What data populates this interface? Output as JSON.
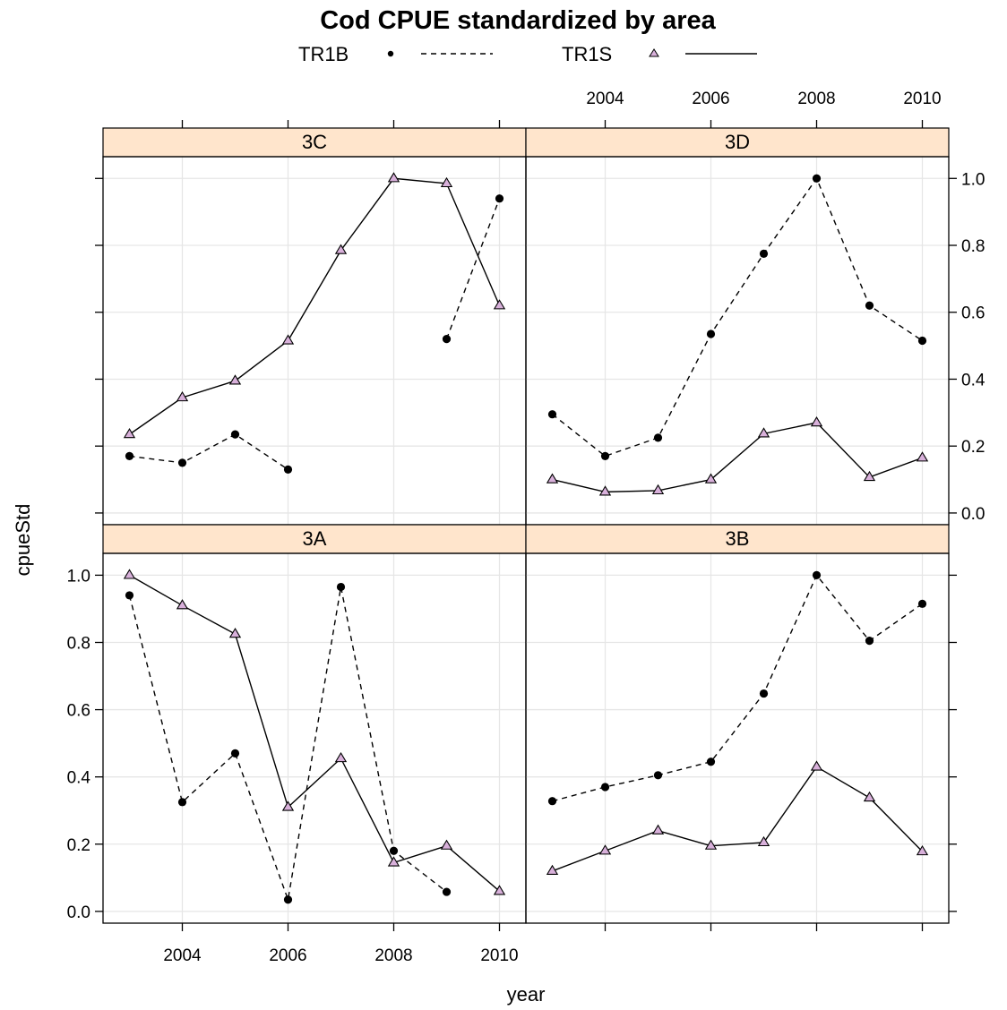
{
  "chart_data": {
    "type": "line",
    "title": "Cod CPUE standardized by area",
    "xlabel": "year",
    "ylabel": "cpueStd",
    "xlim": [
      2002.5,
      2010.5
    ],
    "ylim": [
      -0.035,
      1.065
    ],
    "x_ticks": [
      2004,
      2006,
      2008,
      2010
    ],
    "y_ticks": [
      0.0,
      0.2,
      0.4,
      0.6,
      0.8,
      1.0
    ],
    "grid": true,
    "legend": {
      "placement": "top",
      "entries": [
        {
          "name": "TR1B",
          "marker": "circle",
          "line": "dashed"
        },
        {
          "name": "TR1S",
          "marker": "triangle",
          "line": "solid"
        }
      ]
    },
    "colors": {
      "strip": "#ffe5cc",
      "triangle_fill": "#d8b0da",
      "grid": "#e6e6e6"
    },
    "x": [
      2003,
      2004,
      2005,
      2006,
      2007,
      2008,
      2009,
      2010
    ],
    "panels": [
      {
        "area": "3C",
        "series": [
          {
            "name": "TR1B",
            "values": [
              0.17,
              0.15,
              0.235,
              0.13,
              null,
              null,
              0.52,
              0.94
            ]
          },
          {
            "name": "TR1S",
            "values": [
              0.235,
              0.345,
              0.395,
              0.515,
              0.785,
              1.0,
              0.985,
              0.62
            ]
          }
        ]
      },
      {
        "area": "3D",
        "series": [
          {
            "name": "TR1B",
            "values": [
              0.295,
              0.17,
              0.225,
              0.535,
              0.775,
              1.0,
              0.62,
              0.515
            ]
          },
          {
            "name": "TR1S",
            "values": [
              0.1,
              0.063,
              0.067,
              0.1,
              0.237,
              0.27,
              0.107,
              0.165
            ]
          }
        ]
      },
      {
        "area": "3A",
        "series": [
          {
            "name": "TR1B",
            "values": [
              0.94,
              0.325,
              0.47,
              0.035,
              0.965,
              0.18,
              0.058,
              null
            ]
          },
          {
            "name": "TR1S",
            "values": [
              1.0,
              0.91,
              0.825,
              0.31,
              0.455,
              0.145,
              0.195,
              0.06
            ]
          }
        ]
      },
      {
        "area": "3B",
        "series": [
          {
            "name": "TR1B",
            "values": [
              0.328,
              0.37,
              0.405,
              0.445,
              0.648,
              1.0,
              0.805,
              0.915
            ]
          },
          {
            "name": "TR1S",
            "values": [
              0.12,
              0.18,
              0.24,
              0.195,
              0.205,
              0.43,
              0.338,
              0.178
            ]
          }
        ]
      }
    ]
  }
}
